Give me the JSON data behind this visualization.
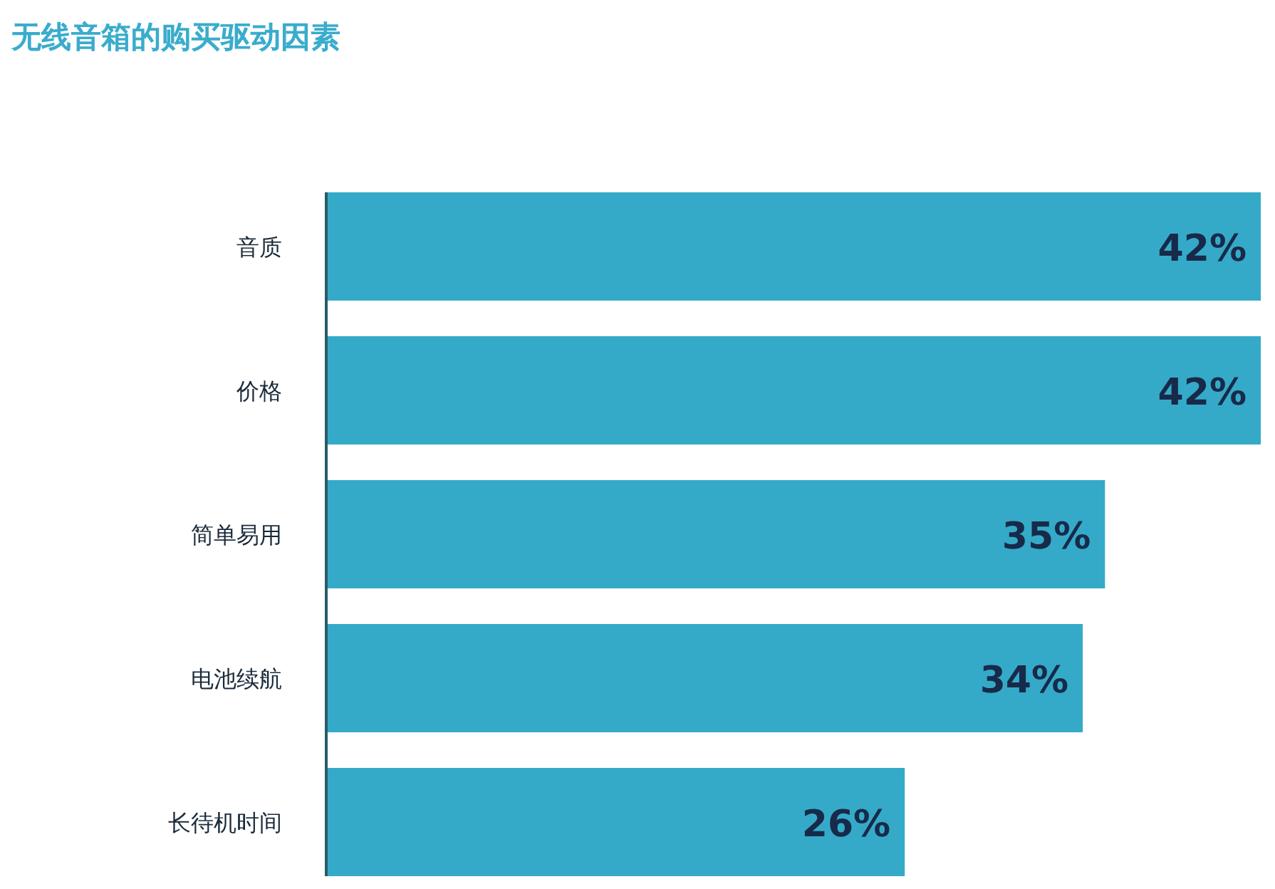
{
  "chart_data": {
    "type": "bar",
    "orientation": "horizontal",
    "title": "无线音箱的购买驱动因素",
    "categories": [
      "音质",
      "价格",
      "简单易用",
      "电池续航",
      "长待机时间"
    ],
    "values": [
      42,
      42,
      35,
      34,
      26
    ],
    "value_labels": [
      "42%",
      "42%",
      "35%",
      "34%",
      "26%"
    ],
    "color": "#35aac8"
  }
}
